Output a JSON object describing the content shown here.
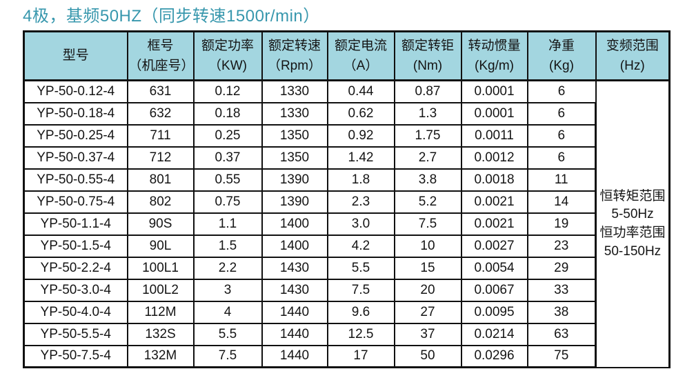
{
  "title": "4极，基频50HZ（同步转速1500r/min）",
  "colors": {
    "title": "#3797ad",
    "header_bg": "#a3d6e0",
    "border": "#101010",
    "text": "#141414",
    "page_bg": "#ffffff"
  },
  "table": {
    "headers": [
      {
        "line1": "型号",
        "line2": ""
      },
      {
        "line1": "框号",
        "line2": "（机座号）"
      },
      {
        "line1": "额定功率",
        "line2": "（KW)"
      },
      {
        "line1": "额定转速",
        "line2": "（Rpm）"
      },
      {
        "line1": "额定电流",
        "line2": "（A）"
      },
      {
        "line1": "额定转钜",
        "line2": "(Nm)"
      },
      {
        "line1": "转动惯量",
        "line2": "(Kg/m)"
      },
      {
        "line1": "净重",
        "line2": "(Kg)"
      },
      {
        "line1": "变频范围",
        "line2": "(Hz)"
      }
    ],
    "rows": [
      [
        "YP-50-0.12-4",
        "631",
        "0.12",
        "1330",
        "0.44",
        "0.87",
        "0.0001",
        "6"
      ],
      [
        "YP-50-0.18-4",
        "632",
        "0.18",
        "1330",
        "0.62",
        "1.3",
        "0.0001",
        "6"
      ],
      [
        "YP-50-0.25-4",
        "711",
        "0.25",
        "1350",
        "0.92",
        "1.75",
        "0.0011",
        "6"
      ],
      [
        "YP-50-0.37-4",
        "712",
        "0.37",
        "1350",
        "1.42",
        "2.7",
        "0.0012",
        "6"
      ],
      [
        "YP-50-0.55-4",
        "801",
        "0.55",
        "1390",
        "1.8",
        "3.8",
        "0.0018",
        "11"
      ],
      [
        "YP-50-0.75-4",
        "802",
        "0.75",
        "1390",
        "2.3",
        "5.2",
        "0.0021",
        "14"
      ],
      [
        "YP-50-1.1-4",
        "90S",
        "1.1",
        "1400",
        "3.0",
        "7.5",
        "0.0021",
        "19"
      ],
      [
        "YP-50-1.5-4",
        "90L",
        "1.5",
        "1400",
        "4.2",
        "10",
        "0.0027",
        "23"
      ],
      [
        "YP-50-2.2-4",
        "100L1",
        "2.2",
        "1430",
        "5.5",
        "15",
        "0.0054",
        "29"
      ],
      [
        "YP-50-3.0-4",
        "100L2",
        "3",
        "1430",
        "7.5",
        "20",
        "0.0067",
        "33"
      ],
      [
        "YP-50-4.0-4",
        "112M",
        "4",
        "1440",
        "9.6",
        "27",
        "0.0095",
        "38"
      ],
      [
        "YP-50-5.5-4",
        "132S",
        "5.5",
        "1440",
        "12.5",
        "37",
        "0.0214",
        "63"
      ],
      [
        "YP-50-7.5-4",
        "132M",
        "7.5",
        "1440",
        "17",
        "50",
        "0.0296",
        "75"
      ]
    ],
    "freq_range": [
      "恒转矩范围",
      "5-50Hz",
      "恒功率范围",
      "50-150Hz"
    ]
  }
}
